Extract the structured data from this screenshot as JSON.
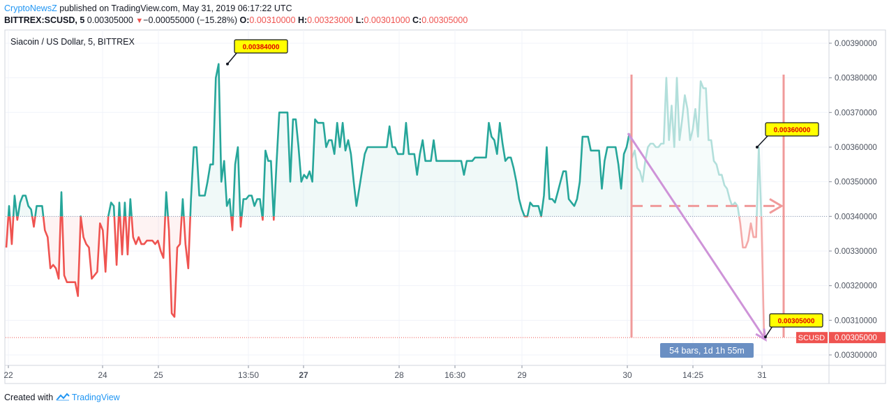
{
  "header": {
    "author": "CryptoNewsZ",
    "published_text": "published on TradingView.com, May 31, 2019 06:17:22 UTC",
    "symbol": "BITTREX:SCUSD, 5",
    "last": "0.00305000",
    "change": "−0.00055000 (−15.28%)",
    "o_label": "O:",
    "o_val": "0.00310000",
    "h_label": "H:",
    "h_val": "0.00323000",
    "l_label": "L:",
    "l_val": "0.00301000",
    "c_label": "C:",
    "c_val": "0.00305000"
  },
  "chart_title": "Siacoin / US Dollar, 5, BITTREX",
  "footer": {
    "created_with": "Created with",
    "brand": "TradingView"
  },
  "colors": {
    "up": "#26a69a",
    "down": "#ef5350",
    "projection": "#b2dfdb",
    "drawing": "#f48fb1",
    "arrow": "#ce93d8",
    "label_bg": "#ffff00",
    "label_text": "#e00000",
    "ruler_bg": "#6a8fc3"
  },
  "chart_data": {
    "type": "line",
    "title": "Siacoin / US Dollar, 5, BITTREX",
    "xlabel": "",
    "ylabel": "",
    "x_ticks": [
      "22",
      "24",
      "25",
      "13:50",
      "27",
      "28",
      "16:30",
      "29",
      "30",
      "14:25",
      "31"
    ],
    "y_ticks": [
      "0.00300000",
      "0.00310000",
      "0.00320000",
      "0.00330000",
      "0.00340000",
      "0.00350000",
      "0.00360000",
      "0.00370000",
      "0.00380000",
      "0.00390000"
    ],
    "ylim": [
      0.00296,
      0.00395
    ],
    "baseline": 0.0034,
    "last_price": 0.00305,
    "last_price_label": "0.00305000",
    "last_price_tag": "SCUSD",
    "series": [
      {
        "values": [
          0.00331,
          0.00343,
          0.00332,
          0.00346,
          0.00339,
          0.00344,
          0.00346,
          0.00346,
          0.00343,
          0.00342,
          0.00337,
          0.00343,
          0.00343,
          0.00343,
          0.00336,
          0.00334,
          0.00325,
          0.00326,
          0.00325,
          0.00322,
          0.00347,
          0.00323,
          0.00321,
          0.00321,
          0.00321,
          0.00321,
          0.00317,
          0.0034,
          0.00334,
          0.00332,
          0.00331,
          0.00322,
          0.00323,
          0.00324,
          0.00338,
          0.00336,
          0.00324,
          0.0034,
          0.00344,
          0.00343,
          0.00326,
          0.00344,
          0.00329,
          0.00344,
          0.00329,
          0.00345,
          0.00334,
          0.00332,
          0.00334,
          0.00332,
          0.00332,
          0.00333,
          0.00333,
          0.00333,
          0.00332,
          0.00333,
          0.0033,
          0.00328,
          0.00347,
          0.00336,
          0.00312,
          0.00311,
          0.00331,
          0.00332,
          0.00345,
          0.00332,
          0.00325,
          0.00345,
          0.0036,
          0.0036,
          0.00346,
          0.00346,
          0.00346,
          0.0035,
          0.00355,
          0.00355,
          0.0038,
          0.00384,
          0.0035,
          0.00356,
          0.00343,
          0.00345,
          0.00336,
          0.00355,
          0.0036,
          0.00337,
          0.00345,
          0.00345,
          0.00346,
          0.00346,
          0.00343,
          0.00345,
          0.00345,
          0.00339,
          0.00359,
          0.00356,
          0.00356,
          0.00339,
          0.00355,
          0.0037,
          0.0037,
          0.0037,
          0.0037,
          0.0035,
          0.00368,
          0.00368,
          0.0036,
          0.0035,
          0.00352,
          0.00351,
          0.00353,
          0.0035,
          0.00368,
          0.00367,
          0.00367,
          0.00367,
          0.0036,
          0.00362,
          0.00362,
          0.00358,
          0.00367,
          0.0036,
          0.00367,
          0.00359,
          0.00362,
          0.00358,
          0.0035,
          0.00343,
          0.00348,
          0.00353,
          0.00358,
          0.0036,
          0.0036,
          0.0036,
          0.0036,
          0.0036,
          0.0036,
          0.0036,
          0.0036,
          0.00366,
          0.0036,
          0.0036,
          0.00358,
          0.00358,
          0.00358,
          0.00367,
          0.00358,
          0.00358,
          0.00358,
          0.00352,
          0.00358,
          0.00362,
          0.00356,
          0.00356,
          0.00356,
          0.00362,
          0.00356,
          0.00356,
          0.00356,
          0.00356,
          0.00356,
          0.00356,
          0.00356,
          0.00356,
          0.00356,
          0.00356,
          0.00352,
          0.00356,
          0.00356,
          0.00356,
          0.00357,
          0.00357,
          0.00357,
          0.00357,
          0.00357,
          0.00367,
          0.00363,
          0.00362,
          0.00358,
          0.00367,
          0.00361,
          0.00356,
          0.00357,
          0.00357,
          0.00354,
          0.0035,
          0.00345,
          0.00342,
          0.0034,
          0.0034,
          0.00344,
          0.00343,
          0.00343,
          0.00343,
          0.0034,
          0.00346,
          0.0036,
          0.00345,
          0.00345,
          0.00344,
          0.00347,
          0.0035,
          0.00353,
          0.00353,
          0.00345,
          0.00344,
          0.00343,
          0.00345,
          0.0035,
          0.00363,
          0.00363,
          0.00363,
          0.00359,
          0.00359,
          0.00359,
          0.00359,
          0.00348,
          0.00356,
          0.0036,
          0.0036,
          0.0036,
          0.0036,
          0.00355,
          0.00348,
          0.00358,
          0.0036,
          0.00364
        ]
      },
      {
        "values": [
          0.00364,
          0.00357,
          0.00359,
          0.00354,
          0.00353,
          0.0035,
          0.00356,
          0.0036,
          0.00361,
          0.00361,
          0.0036,
          0.0036,
          0.00361,
          0.00361,
          0.0038,
          0.00362,
          0.00372,
          0.0036,
          0.0038,
          0.00362,
          0.00368,
          0.00375,
          0.00371,
          0.00362,
          0.00365,
          0.00371,
          0.00363,
          0.00379,
          0.00377,
          0.00377,
          0.00362,
          0.00362,
          0.00356,
          0.00355,
          0.00352,
          0.00352,
          0.00349,
          0.00348,
          0.00345,
          0.00343,
          0.00344,
          0.00343
        ]
      },
      {
        "values": [
          0.00343,
          0.00338,
          0.00331,
          0.00331,
          0.00333,
          0.00338,
          0.00334,
          0.00334,
          0.0036,
          0.00339,
          0.00305
        ]
      }
    ],
    "annotations": [
      {
        "label": "0.00384000"
      },
      {
        "label": "0.00360000"
      },
      {
        "label": "0.00305000"
      }
    ],
    "ruler_label": "54 bars, 1d 1h 55m"
  }
}
